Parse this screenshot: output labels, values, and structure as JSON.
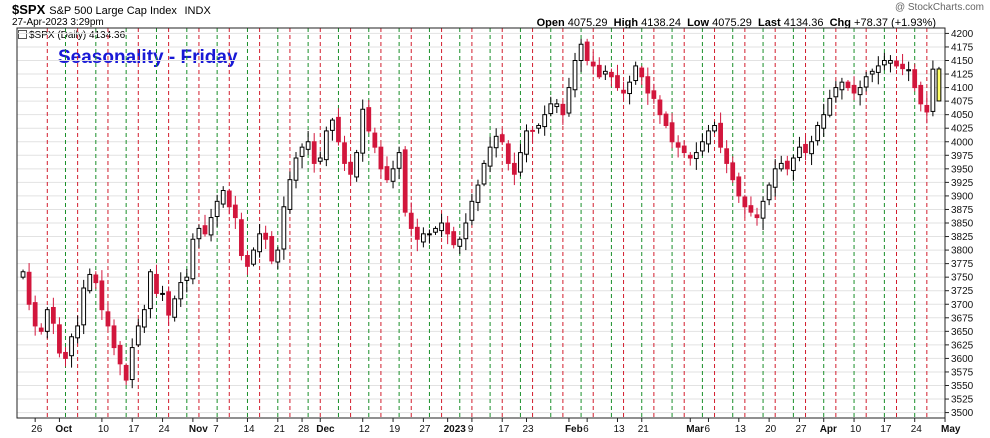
{
  "header": {
    "ticker": "$SPX",
    "name": "S&P 500 Large Cap Index",
    "exchange": "INDX",
    "timestamp": "27-Apr-2023 3:29pm",
    "watermark": "@ StockCharts.com",
    "open_label": "Open",
    "open": "4075.29",
    "high_label": "High",
    "high": "4138.24",
    "low_label": "Low",
    "low": "4075.29",
    "last_label": "Last",
    "last": "4134.36",
    "chg_label": "Chg",
    "chg": "+78.37 (+1.93%)",
    "legend_label": "$SPX (Daily) 4134.36"
  },
  "chart_data": {
    "type": "candlestick",
    "title": "Seasonality - Friday",
    "ylim": [
      3490,
      4210
    ],
    "y_ticks": [
      3500,
      3525,
      3550,
      3575,
      3600,
      3625,
      3650,
      3675,
      3700,
      3725,
      3750,
      3775,
      3800,
      3825,
      3850,
      3875,
      3900,
      3925,
      3950,
      3975,
      4000,
      4025,
      4050,
      4075,
      4100,
      4125,
      4150,
      4175,
      4200
    ],
    "x_labels": [
      {
        "i": 2,
        "label": "26",
        "bold": false
      },
      {
        "i": 6,
        "label": "Oct",
        "bold": true
      },
      {
        "i": 13,
        "label": "10",
        "bold": false
      },
      {
        "i": 18,
        "label": "17",
        "bold": false
      },
      {
        "i": 23,
        "label": "24",
        "bold": false
      },
      {
        "i": 28,
        "label": "Nov",
        "bold": true
      },
      {
        "i": 32,
        "label": "7",
        "bold": false
      },
      {
        "i": 37,
        "label": "14",
        "bold": false
      },
      {
        "i": 42,
        "label": "21",
        "bold": false
      },
      {
        "i": 46,
        "label": "28",
        "bold": false
      },
      {
        "i": 49,
        "label": "Dec",
        "bold": true
      },
      {
        "i": 56,
        "label": "12",
        "bold": false
      },
      {
        "i": 61,
        "label": "19",
        "bold": false
      },
      {
        "i": 66,
        "label": "27",
        "bold": false
      },
      {
        "i": 70,
        "label": "2023",
        "bold": true
      },
      {
        "i": 74,
        "label": "9",
        "bold": false
      },
      {
        "i": 79,
        "label": "17",
        "bold": false
      },
      {
        "i": 83,
        "label": "23",
        "bold": false
      },
      {
        "i": 90,
        "label": "Feb",
        "bold": true
      },
      {
        "i": 93,
        "label": "6",
        "bold": false
      },
      {
        "i": 98,
        "label": "13",
        "bold": false
      },
      {
        "i": 102,
        "label": "21",
        "bold": false
      },
      {
        "i": 110,
        "label": "Mar",
        "bold": true
      },
      {
        "i": 113,
        "label": "6",
        "bold": false
      },
      {
        "i": 118,
        "label": "13",
        "bold": false
      },
      {
        "i": 123,
        "label": "20",
        "bold": false
      },
      {
        "i": 128,
        "label": "27",
        "bold": false
      },
      {
        "i": 132,
        "label": "Apr",
        "bold": true
      },
      {
        "i": 137,
        "label": "10",
        "bold": false
      },
      {
        "i": 142,
        "label": "17",
        "bold": false
      },
      {
        "i": 147,
        "label": "24",
        "bold": false
      },
      {
        "i": 152,
        "label": "May",
        "bold": true
      }
    ],
    "friday_lines": [
      4,
      9,
      14,
      19,
      24,
      29,
      34,
      39,
      44,
      49,
      54,
      59,
      64,
      69,
      74,
      79,
      84,
      89,
      94,
      99,
      104,
      109,
      114,
      119,
      124,
      129,
      134,
      139,
      144,
      149
    ],
    "monday_lines": [
      7,
      12,
      17,
      22,
      27,
      32,
      37,
      42,
      47,
      52,
      57,
      62,
      67,
      72,
      77,
      82,
      87,
      92,
      97,
      102,
      107,
      112,
      117,
      122,
      127,
      132,
      137,
      142,
      147
    ],
    "series": [
      {
        "name": "$SPX",
        "close_path": [
          3760,
          3700,
          3660,
          3650,
          3690,
          3665,
          3610,
          3600,
          3640,
          3660,
          3730,
          3755,
          3740,
          3690,
          3660,
          3620,
          3590,
          3560,
          3620,
          3660,
          3690,
          3760,
          3720,
          3720,
          3680,
          3710,
          3740,
          3750,
          3820,
          3840,
          3830,
          3860,
          3890,
          3910,
          3880,
          3860,
          3790,
          3770,
          3800,
          3830,
          3820,
          3780,
          3800,
          3880,
          3930,
          3970,
          3990,
          4000,
          3960,
          3970,
          4020,
          4040,
          4000,
          3960,
          3940,
          3980,
          4060,
          4020,
          3990,
          3950,
          3930,
          3950,
          3980,
          3870,
          3840,
          3820,
          3830,
          3830,
          3840,
          3850,
          3830,
          3810,
          3820,
          3850,
          3890,
          3920,
          3960,
          3990,
          4010,
          4000,
          3960,
          3940,
          3980,
          4020,
          4020,
          4030,
          4050,
          4070,
          4070,
          4050,
          4100,
          4150,
          4180,
          4150,
          4140,
          4120,
          4130,
          4120,
          4100,
          4090,
          4110,
          4140,
          4120,
          4090,
          4080,
          4050,
          4030,
          4000,
          3990,
          3980,
          3970,
          3980,
          4000,
          4020,
          4030,
          3990,
          3960,
          3930,
          3900,
          3880,
          3870,
          3860,
          3890,
          3920,
          3950,
          3960,
          3950,
          3970,
          3990,
          3980,
          4000,
          4030,
          4050,
          4080,
          4100,
          4110,
          4100,
          4090,
          4100,
          4120,
          4130,
          4140,
          4150,
          4150,
          4140,
          4135,
          4133,
          4100,
          4070,
          4055,
          4134
        ]
      },
      {
        "name": "last",
        "candle": {
          "o": 4075.29,
          "h": 4138.24,
          "l": 4075.29,
          "c": 4134.36
        }
      }
    ]
  }
}
